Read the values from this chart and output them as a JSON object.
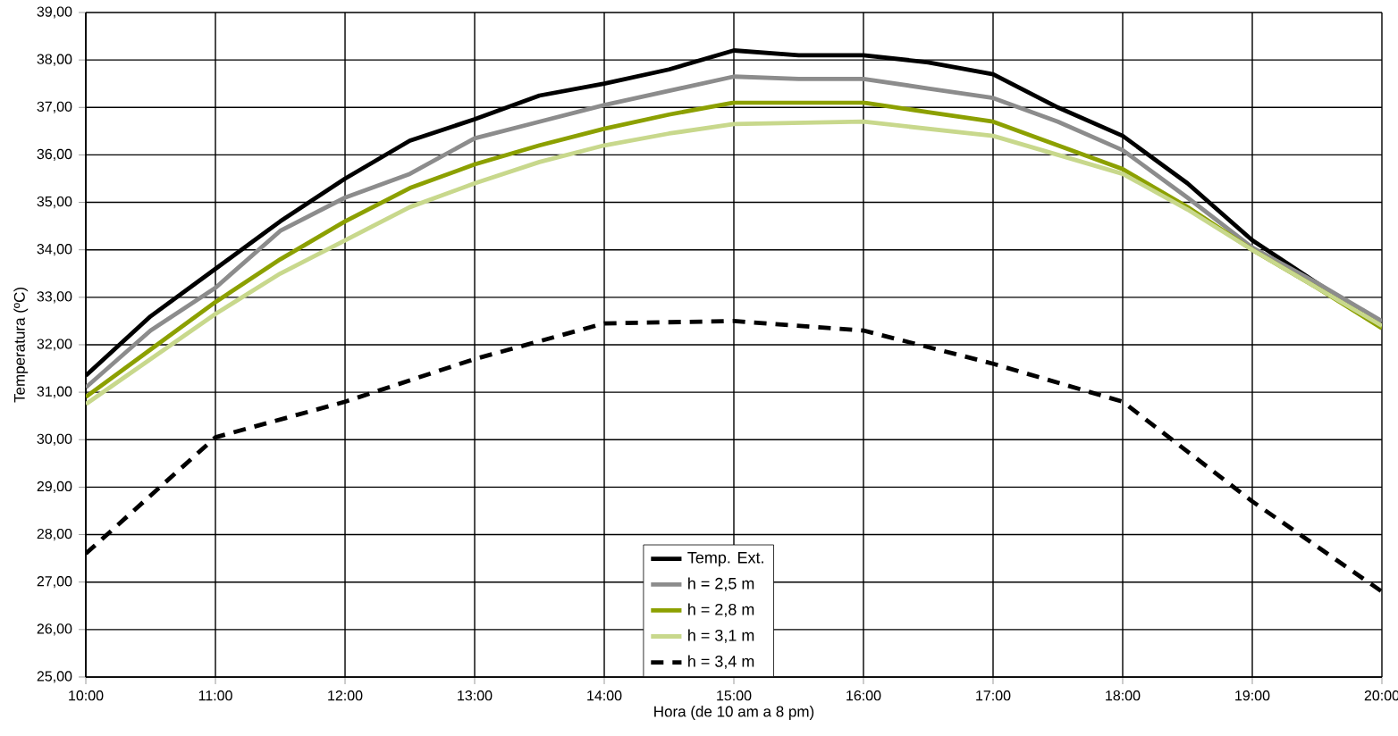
{
  "chart_data": {
    "type": "line",
    "xlabel": "Hora (de 10 am a 8 pm)",
    "ylabel": "Temperatura (ºC)",
    "xlim": [
      10,
      20
    ],
    "xticks": [
      {
        "value": 10,
        "label": "10:00"
      },
      {
        "value": 11,
        "label": "11:00"
      },
      {
        "value": 12,
        "label": "12:00"
      },
      {
        "value": 13,
        "label": "13:00"
      },
      {
        "value": 14,
        "label": "14:00"
      },
      {
        "value": 15,
        "label": "15:00"
      },
      {
        "value": 16,
        "label": "16:00"
      },
      {
        "value": 17,
        "label": "17:00"
      },
      {
        "value": 18,
        "label": "18:00"
      },
      {
        "value": 19,
        "label": "19:00"
      },
      {
        "value": 20,
        "label": "20:00"
      }
    ],
    "ylim": [
      25,
      39
    ],
    "yticks": [
      {
        "value": 25,
        "label": "25,00"
      },
      {
        "value": 26,
        "label": "26,00"
      },
      {
        "value": 27,
        "label": "27,00"
      },
      {
        "value": 28,
        "label": "28,00"
      },
      {
        "value": 29,
        "label": "29,00"
      },
      {
        "value": 30,
        "label": "30,00"
      },
      {
        "value": 31,
        "label": "31,00"
      },
      {
        "value": 32,
        "label": "32,00"
      },
      {
        "value": 33,
        "label": "33,00"
      },
      {
        "value": 34,
        "label": "34,00"
      },
      {
        "value": 35,
        "label": "35,00"
      },
      {
        "value": 36,
        "label": "36,00"
      },
      {
        "value": 37,
        "label": "37,00"
      },
      {
        "value": 38,
        "label": "38,00"
      },
      {
        "value": 39,
        "label": "39,00"
      }
    ],
    "grid": true,
    "legend": "bottom",
    "marker": "none",
    "series": [
      {
        "name": "Temp. Ext.",
        "color": "#000000",
        "line_style": "solid",
        "x": [
          10,
          10.5,
          11,
          11.5,
          12,
          12.5,
          13,
          13.5,
          14,
          14.5,
          15,
          15.5,
          16,
          16.5,
          17,
          17.5,
          18,
          18.5,
          19,
          19.5,
          20
        ],
        "values": [
          31.35,
          32.6,
          33.6,
          34.6,
          35.5,
          36.3,
          36.75,
          37.25,
          37.5,
          37.8,
          38.2,
          38.1,
          38.1,
          37.95,
          37.7,
          37.0,
          36.4,
          35.4,
          34.2,
          33.3,
          32.4
        ]
      },
      {
        "name": "h = 2,5 m",
        "color": "#8c8c8c",
        "line_style": "solid",
        "x": [
          10,
          10.5,
          11,
          11.5,
          12,
          12.5,
          13,
          13.5,
          14,
          14.5,
          15,
          15.5,
          16,
          16.5,
          17,
          17.5,
          18,
          18.5,
          19,
          19.5,
          20
        ],
        "values": [
          31.1,
          32.3,
          33.2,
          34.4,
          35.1,
          35.6,
          36.35,
          36.7,
          37.05,
          37.35,
          37.65,
          37.6,
          37.6,
          37.4,
          37.2,
          36.7,
          36.1,
          35.1,
          34.05,
          33.3,
          32.5
        ]
      },
      {
        "name": "h = 2,8 m",
        "color": "#8ca000",
        "line_style": "solid",
        "x": [
          10,
          10.5,
          11,
          11.5,
          12,
          12.5,
          13,
          13.5,
          14,
          14.5,
          15,
          15.5,
          16,
          16.5,
          17,
          17.5,
          18,
          18.5,
          19,
          19.5,
          20
        ],
        "values": [
          30.9,
          31.9,
          32.9,
          33.8,
          34.6,
          35.3,
          35.8,
          36.2,
          36.55,
          36.85,
          37.1,
          37.1,
          37.1,
          36.9,
          36.7,
          36.2,
          35.7,
          34.9,
          34.0,
          33.2,
          32.35
        ]
      },
      {
        "name": "h = 3,1 m",
        "color": "#c8d88c",
        "line_style": "solid",
        "x": [
          10,
          10.5,
          11,
          11.5,
          12,
          12.5,
          13,
          13.5,
          14,
          14.5,
          15,
          16,
          17,
          18,
          18.5,
          19,
          20
        ],
        "values": [
          30.75,
          31.7,
          32.65,
          33.5,
          34.2,
          34.9,
          35.4,
          35.85,
          36.2,
          36.45,
          36.65,
          36.7,
          36.4,
          35.6,
          34.85,
          34.0,
          32.4
        ]
      },
      {
        "name": "h = 3,4 m",
        "color": "#000000",
        "line_style": "dashed",
        "x": [
          10,
          11,
          12,
          13,
          14,
          15,
          16,
          17,
          18,
          19,
          20
        ],
        "values": [
          27.6,
          30.05,
          30.8,
          31.7,
          32.45,
          32.5,
          32.3,
          31.6,
          30.8,
          28.7,
          26.8
        ]
      }
    ]
  }
}
